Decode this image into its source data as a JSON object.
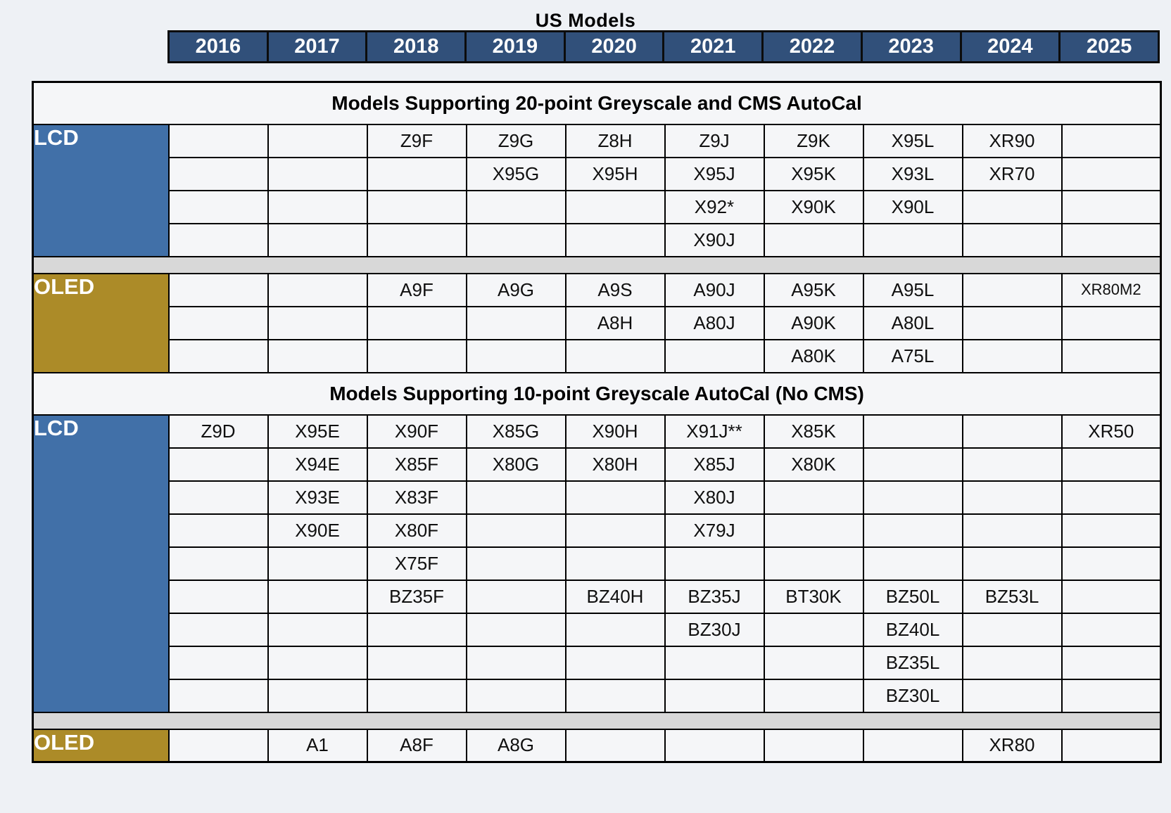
{
  "title": "US Models",
  "years": [
    "2016",
    "2017",
    "2018",
    "2019",
    "2020",
    "2021",
    "2022",
    "2023",
    "2024",
    "2025"
  ],
  "colors": {
    "page_bg": "#eef1f5",
    "cell_bg": "#f5f6f8",
    "year_header_bg": "#31507a",
    "lcd_bg": "#4170a8",
    "oled_bg": "#ac8b28",
    "separator_bg": "#d8d8d8",
    "border": "#000000"
  },
  "small_cells": [
    "XR80M2"
  ],
  "sections": [
    {
      "header": "Models Supporting 20-point Greyscale and CMS AutoCal",
      "groups": [
        {
          "label": "LCD",
          "type": "lcd",
          "rows": [
            [
              "",
              "",
              "Z9F",
              "Z9G",
              "Z8H",
              "Z9J",
              "Z9K",
              "X95L",
              "XR90",
              ""
            ],
            [
              "",
              "",
              "",
              "X95G",
              "X95H",
              "X95J",
              "X95K",
              "X93L",
              "XR70",
              ""
            ],
            [
              "",
              "",
              "",
              "",
              "",
              "X92*",
              "X90K",
              "X90L",
              "",
              ""
            ],
            [
              "",
              "",
              "",
              "",
              "",
              "X90J",
              "",
              "",
              "",
              ""
            ]
          ]
        },
        {
          "label": "OLED",
          "type": "oled",
          "rows": [
            [
              "",
              "",
              "A9F",
              "A9G",
              "A9S",
              "A90J",
              "A95K",
              "A95L",
              "",
              "XR80M2"
            ],
            [
              "",
              "",
              "",
              "",
              "A8H",
              "A80J",
              "A90K",
              "A80L",
              "",
              ""
            ],
            [
              "",
              "",
              "",
              "",
              "",
              "",
              "A80K",
              "A75L",
              "",
              ""
            ]
          ]
        }
      ]
    },
    {
      "header": "Models Supporting 10-point Greyscale AutoCal (No CMS)",
      "groups": [
        {
          "label": "LCD",
          "type": "lcd",
          "rows": [
            [
              "Z9D",
              "X95E",
              "X90F",
              "X85G",
              "X90H",
              "X91J**",
              "X85K",
              "",
              "",
              "XR50"
            ],
            [
              "",
              "X94E",
              "X85F",
              "X80G",
              "X80H",
              "X85J",
              "X80K",
              "",
              "",
              ""
            ],
            [
              "",
              "X93E",
              "X83F",
              "",
              "",
              "X80J",
              "",
              "",
              "",
              ""
            ],
            [
              "",
              "X90E",
              "X80F",
              "",
              "",
              "X79J",
              "",
              "",
              "",
              ""
            ],
            [
              "",
              "",
              "X75F",
              "",
              "",
              "",
              "",
              "",
              "",
              ""
            ],
            [
              "",
              "",
              "BZ35F",
              "",
              "BZ40H",
              "BZ35J",
              "BT30K",
              "BZ50L",
              "BZ53L",
              ""
            ],
            [
              "",
              "",
              "",
              "",
              "",
              "BZ30J",
              "",
              "BZ40L",
              "",
              ""
            ],
            [
              "",
              "",
              "",
              "",
              "",
              "",
              "",
              "BZ35L",
              "",
              ""
            ],
            [
              "",
              "",
              "",
              "",
              "",
              "",
              "",
              "BZ30L",
              "",
              ""
            ]
          ]
        },
        {
          "label": "OLED",
          "type": "oled",
          "rows": [
            [
              "",
              "A1",
              "A8F",
              "A8G",
              "",
              "",
              "",
              "",
              "XR80",
              ""
            ]
          ]
        }
      ]
    }
  ]
}
